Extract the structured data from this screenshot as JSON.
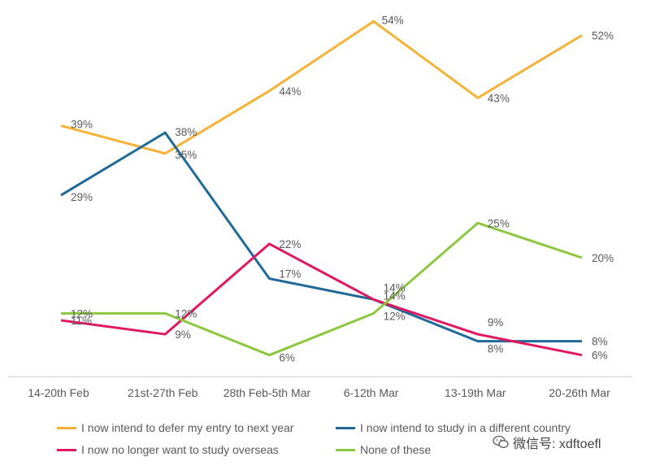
{
  "chart_data": {
    "type": "line",
    "categories": [
      "14-20th Feb",
      "21st-27th Feb",
      "28th Feb-5th Mar",
      "6-12th Mar",
      "13-19th Mar",
      "20-26th Mar"
    ],
    "ylim": [
      0,
      60
    ],
    "grid": false,
    "legend_position": "bottom",
    "series": [
      {
        "name": "I now intend to defer my entry to next year",
        "color": "#f5b236",
        "values": [
          39,
          35,
          44,
          54,
          43,
          52
        ],
        "labels": [
          "39%",
          "35%",
          "44%",
          "54%",
          "43%",
          "52%"
        ]
      },
      {
        "name": "I now intend to study in a different country",
        "color": "#1f6a99",
        "values": [
          29,
          38,
          17,
          14,
          8,
          8
        ],
        "labels": [
          "29%",
          "38%",
          "17%",
          "14%",
          "8%",
          "8%"
        ]
      },
      {
        "name": "I now no longer want to study overseas",
        "color": "#e0185f",
        "values": [
          11,
          9,
          22,
          14,
          9,
          6
        ],
        "labels": [
          "11%",
          "9%",
          "22%",
          "14%",
          "9%",
          "6%"
        ]
      },
      {
        "name": "None of these",
        "color": "#8dc63f",
        "values": [
          12,
          12,
          6,
          12,
          25,
          20
        ],
        "labels": [
          "12%",
          "12%",
          "6%",
          "12%",
          "25%",
          "20%"
        ]
      }
    ]
  },
  "watermark": {
    "text": "微信号: xdftoefl",
    "icon": "wechat-icon"
  }
}
